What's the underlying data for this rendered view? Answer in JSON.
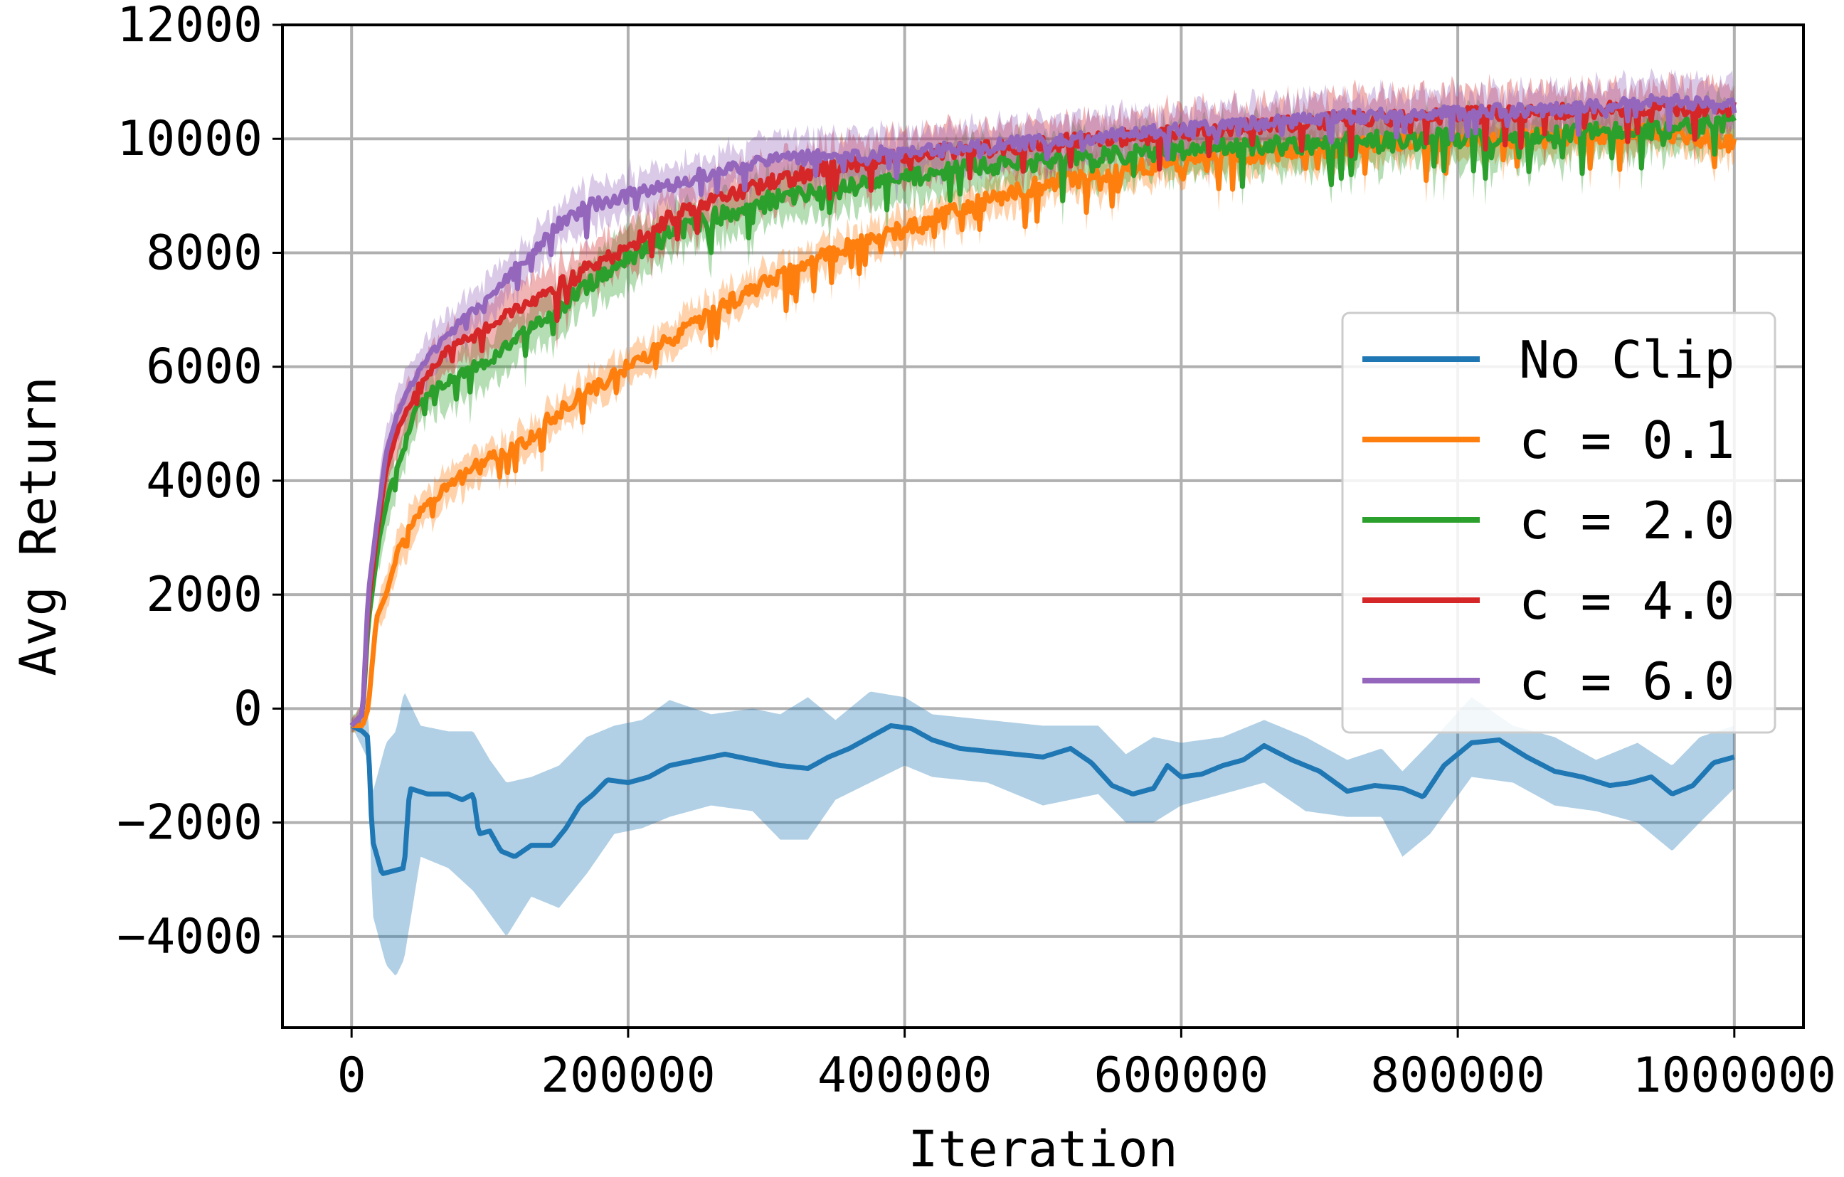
{
  "chart_data": {
    "type": "line",
    "title": "",
    "xlabel": "Iteration",
    "ylabel": "Avg Return",
    "xlim": [
      -50000,
      1050000
    ],
    "ylim": [
      -5600,
      12000
    ],
    "x_ticks": [
      0,
      200000,
      400000,
      600000,
      800000,
      1000000
    ],
    "x_tick_labels": [
      "0",
      "200000",
      "400000",
      "600000",
      "800000",
      "1000000"
    ],
    "y_ticks": [
      -4000,
      -2000,
      0,
      2000,
      4000,
      6000,
      8000,
      10000,
      12000
    ],
    "y_tick_labels": [
      "−4000",
      "−2000",
      "0",
      "2000",
      "4000",
      "6000",
      "8000",
      "10000",
      "12000"
    ],
    "grid": true,
    "legend": "center-right",
    "series": [
      {
        "name": "No Clip",
        "color": "#1f77b4",
        "points": [
          [
            0,
            -300
          ],
          [
            8000,
            -400
          ],
          [
            12000,
            -500
          ],
          [
            15000,
            -2300
          ],
          [
            22000,
            -2900
          ],
          [
            30000,
            -2850
          ],
          [
            38000,
            -2800
          ],
          [
            42000,
            -1400
          ],
          [
            55000,
            -1500
          ],
          [
            70000,
            -1500
          ],
          [
            80000,
            -1600
          ],
          [
            88000,
            -1500
          ],
          [
            92000,
            -2200
          ],
          [
            100000,
            -2150
          ],
          [
            108000,
            -2500
          ],
          [
            118000,
            -2600
          ],
          [
            130000,
            -2400
          ],
          [
            145000,
            -2400
          ],
          [
            155000,
            -2100
          ],
          [
            165000,
            -1700
          ],
          [
            175000,
            -1500
          ],
          [
            185000,
            -1250
          ],
          [
            200000,
            -1300
          ],
          [
            215000,
            -1200
          ],
          [
            230000,
            -1000
          ],
          [
            250000,
            -900
          ],
          [
            270000,
            -800
          ],
          [
            290000,
            -900
          ],
          [
            310000,
            -1000
          ],
          [
            330000,
            -1050
          ],
          [
            345000,
            -850
          ],
          [
            360000,
            -700
          ],
          [
            375000,
            -500
          ],
          [
            390000,
            -300
          ],
          [
            405000,
            -350
          ],
          [
            420000,
            -550
          ],
          [
            440000,
            -700
          ],
          [
            460000,
            -750
          ],
          [
            480000,
            -800
          ],
          [
            500000,
            -850
          ],
          [
            520000,
            -700
          ],
          [
            535000,
            -950
          ],
          [
            550000,
            -1350
          ],
          [
            565000,
            -1500
          ],
          [
            580000,
            -1400
          ],
          [
            590000,
            -1000
          ],
          [
            600000,
            -1200
          ],
          [
            615000,
            -1150
          ],
          [
            630000,
            -1000
          ],
          [
            645000,
            -900
          ],
          [
            660000,
            -650
          ],
          [
            680000,
            -900
          ],
          [
            700000,
            -1100
          ],
          [
            720000,
            -1450
          ],
          [
            740000,
            -1350
          ],
          [
            760000,
            -1400
          ],
          [
            775000,
            -1550
          ],
          [
            790000,
            -1000
          ],
          [
            810000,
            -600
          ],
          [
            830000,
            -550
          ],
          [
            850000,
            -850
          ],
          [
            870000,
            -1100
          ],
          [
            890000,
            -1200
          ],
          [
            910000,
            -1350
          ],
          [
            925000,
            -1300
          ],
          [
            940000,
            -1200
          ],
          [
            955000,
            -1500
          ],
          [
            970000,
            -1350
          ],
          [
            985000,
            -950
          ],
          [
            1000000,
            -850
          ]
        ],
        "band": [
          [
            0,
            -300,
            -300
          ],
          [
            12000,
            -900,
            0
          ],
          [
            15000,
            -3600,
            -1500
          ],
          [
            25000,
            -4500,
            -600
          ],
          [
            32000,
            -4700,
            -400
          ],
          [
            38000,
            -4400,
            300
          ],
          [
            50000,
            -2600,
            -300
          ],
          [
            70000,
            -2800,
            -400
          ],
          [
            88000,
            -3200,
            -400
          ],
          [
            100000,
            -3600,
            -900
          ],
          [
            112000,
            -4000,
            -1300
          ],
          [
            130000,
            -3300,
            -1200
          ],
          [
            150000,
            -3500,
            -1000
          ],
          [
            170000,
            -2900,
            -500
          ],
          [
            190000,
            -2200,
            -300
          ],
          [
            210000,
            -2100,
            -200
          ],
          [
            230000,
            -1900,
            150
          ],
          [
            260000,
            -1700,
            -100
          ],
          [
            290000,
            -1800,
            0
          ],
          [
            310000,
            -2300,
            -100
          ],
          [
            330000,
            -2300,
            200
          ],
          [
            350000,
            -1600,
            -200
          ],
          [
            375000,
            -1300,
            300
          ],
          [
            400000,
            -1000,
            200
          ],
          [
            420000,
            -1200,
            -100
          ],
          [
            460000,
            -1300,
            -200
          ],
          [
            500000,
            -1700,
            -300
          ],
          [
            540000,
            -1500,
            -300
          ],
          [
            560000,
            -2000,
            -800
          ],
          [
            580000,
            -2000,
            -500
          ],
          [
            600000,
            -1700,
            -600
          ],
          [
            630000,
            -1500,
            -500
          ],
          [
            660000,
            -1300,
            -200
          ],
          [
            690000,
            -1800,
            -500
          ],
          [
            720000,
            -1900,
            -900
          ],
          [
            745000,
            -1900,
            -700
          ],
          [
            760000,
            -2600,
            -1100
          ],
          [
            780000,
            -2200,
            -600
          ],
          [
            810000,
            -1200,
            200
          ],
          [
            840000,
            -1300,
            -300
          ],
          [
            870000,
            -1700,
            -500
          ],
          [
            900000,
            -1800,
            -900
          ],
          [
            930000,
            -2000,
            -600
          ],
          [
            955000,
            -2500,
            -1000
          ],
          [
            975000,
            -2000,
            -500
          ],
          [
            1000000,
            -1400,
            -300
          ]
        ],
        "noise": 0
      },
      {
        "name": "c = 0.1",
        "color": "#ff7f0e",
        "points": [
          [
            0,
            -300
          ],
          [
            8000,
            -300
          ],
          [
            12000,
            0
          ],
          [
            18000,
            1600
          ],
          [
            25000,
            2000
          ],
          [
            35000,
            2900
          ],
          [
            45000,
            3300
          ],
          [
            55000,
            3600
          ],
          [
            70000,
            3900
          ],
          [
            85000,
            4200
          ],
          [
            100000,
            4400
          ],
          [
            120000,
            4600
          ],
          [
            140000,
            5000
          ],
          [
            160000,
            5400
          ],
          [
            180000,
            5700
          ],
          [
            200000,
            6000
          ],
          [
            220000,
            6300
          ],
          [
            240000,
            6600
          ],
          [
            260000,
            6900
          ],
          [
            280000,
            7200
          ],
          [
            300000,
            7500
          ],
          [
            320000,
            7700
          ],
          [
            340000,
            7900
          ],
          [
            360000,
            8100
          ],
          [
            380000,
            8300
          ],
          [
            400000,
            8400
          ],
          [
            430000,
            8700
          ],
          [
            460000,
            8900
          ],
          [
            500000,
            9200
          ],
          [
            550000,
            9400
          ],
          [
            600000,
            9600
          ],
          [
            650000,
            9700
          ],
          [
            700000,
            9800
          ],
          [
            750000,
            9900
          ],
          [
            800000,
            9950
          ],
          [
            850000,
            10000
          ],
          [
            900000,
            10050
          ],
          [
            950000,
            10100
          ],
          [
            1000000,
            9900
          ]
        ],
        "band_width": 300,
        "noise": 320
      },
      {
        "name": "c = 2.0",
        "color": "#2ca02c",
        "points": [
          [
            0,
            -300
          ],
          [
            8000,
            -100
          ],
          [
            12000,
            1500
          ],
          [
            20000,
            3000
          ],
          [
            28000,
            3900
          ],
          [
            35000,
            4300
          ],
          [
            45000,
            5200
          ],
          [
            60000,
            5600
          ],
          [
            80000,
            5900
          ],
          [
            100000,
            6100
          ],
          [
            120000,
            6500
          ],
          [
            140000,
            6800
          ],
          [
            160000,
            7200
          ],
          [
            180000,
            7600
          ],
          [
            200000,
            7900
          ],
          [
            230000,
            8300
          ],
          [
            260000,
            8600
          ],
          [
            300000,
            8900
          ],
          [
            350000,
            9100
          ],
          [
            400000,
            9300
          ],
          [
            450000,
            9500
          ],
          [
            500000,
            9600
          ],
          [
            550000,
            9700
          ],
          [
            600000,
            9800
          ],
          [
            650000,
            9850
          ],
          [
            700000,
            9900
          ],
          [
            750000,
            10000
          ],
          [
            800000,
            10000
          ],
          [
            850000,
            10050
          ],
          [
            900000,
            10100
          ],
          [
            950000,
            10200
          ],
          [
            1000000,
            10300
          ]
        ],
        "band_width": 420,
        "noise": 350
      },
      {
        "name": "c = 4.0",
        "color": "#d62728",
        "points": [
          [
            0,
            -300
          ],
          [
            8000,
            -100
          ],
          [
            12000,
            1800
          ],
          [
            18000,
            3000
          ],
          [
            25000,
            4200
          ],
          [
            35000,
            5000
          ],
          [
            50000,
            5700
          ],
          [
            70000,
            6300
          ],
          [
            90000,
            6600
          ],
          [
            110000,
            6900
          ],
          [
            130000,
            7100
          ],
          [
            150000,
            7400
          ],
          [
            170000,
            7700
          ],
          [
            200000,
            8100
          ],
          [
            230000,
            8600
          ],
          [
            260000,
            8900
          ],
          [
            300000,
            9200
          ],
          [
            350000,
            9500
          ],
          [
            400000,
            9700
          ],
          [
            450000,
            9800
          ],
          [
            500000,
            9900
          ],
          [
            550000,
            10000
          ],
          [
            600000,
            10100
          ],
          [
            650000,
            10200
          ],
          [
            700000,
            10300
          ],
          [
            750000,
            10350
          ],
          [
            800000,
            10400
          ],
          [
            850000,
            10450
          ],
          [
            900000,
            10500
          ],
          [
            950000,
            10550
          ],
          [
            1000000,
            10500
          ]
        ],
        "band_width": 420,
        "noise": 300
      },
      {
        "name": "c = 6.0",
        "color": "#9467bd",
        "points": [
          [
            0,
            -300
          ],
          [
            8000,
            -100
          ],
          [
            12000,
            2000
          ],
          [
            18000,
            3200
          ],
          [
            25000,
            4500
          ],
          [
            35000,
            5300
          ],
          [
            50000,
            6000
          ],
          [
            70000,
            6600
          ],
          [
            90000,
            7000
          ],
          [
            110000,
            7500
          ],
          [
            130000,
            8000
          ],
          [
            150000,
            8500
          ],
          [
            170000,
            8800
          ],
          [
            200000,
            9000
          ],
          [
            230000,
            9200
          ],
          [
            260000,
            9400
          ],
          [
            300000,
            9600
          ],
          [
            350000,
            9700
          ],
          [
            400000,
            9750
          ],
          [
            450000,
            9850
          ],
          [
            500000,
            9950
          ],
          [
            550000,
            10050
          ],
          [
            600000,
            10150
          ],
          [
            650000,
            10250
          ],
          [
            700000,
            10350
          ],
          [
            750000,
            10400
          ],
          [
            800000,
            10450
          ],
          [
            850000,
            10500
          ],
          [
            900000,
            10550
          ],
          [
            950000,
            10650
          ],
          [
            1000000,
            10600
          ]
        ],
        "band_width": 380,
        "noise": 260
      }
    ]
  }
}
